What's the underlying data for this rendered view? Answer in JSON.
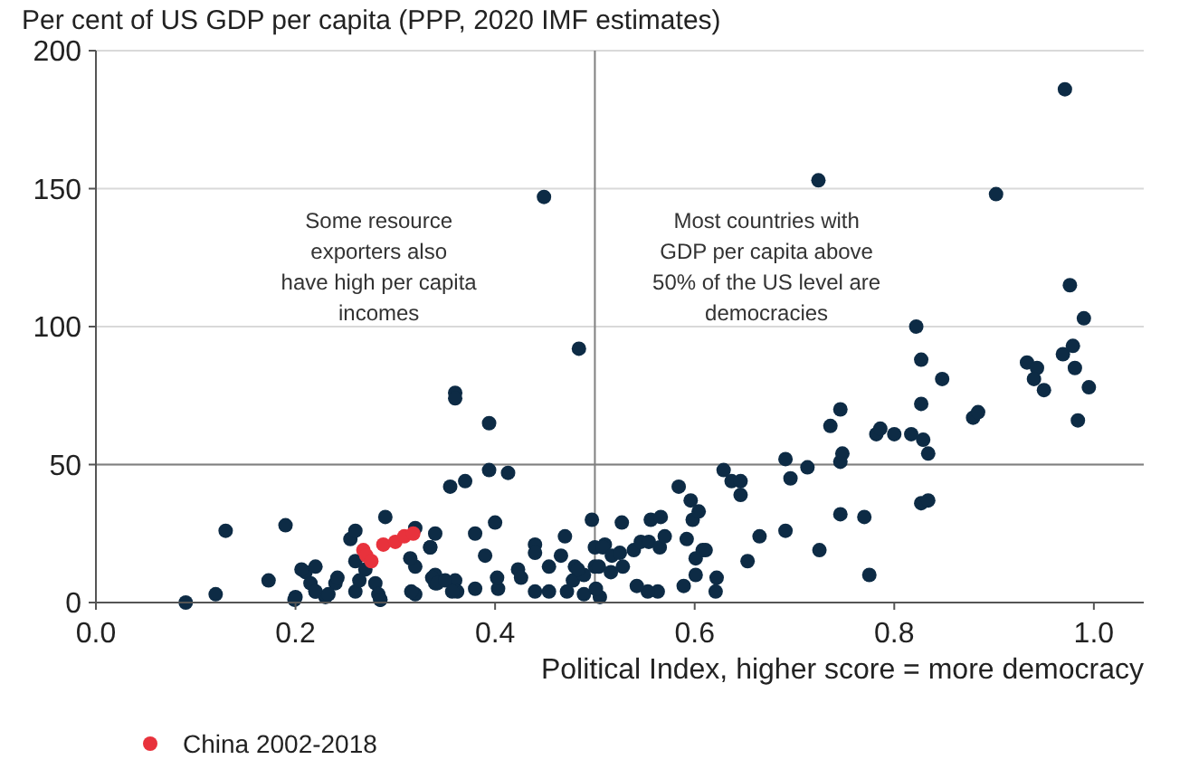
{
  "chart_data": {
    "type": "scatter",
    "title": "Per cent of US GDP per capita (PPP, 2020 IMF estimates)",
    "xlabel": "Political Index, higher score = more democracy",
    "xlim": [
      0,
      1.05
    ],
    "ylim": [
      0,
      200
    ],
    "xticks": [
      {
        "value": 0,
        "label": "0.0"
      },
      0.2,
      0.4,
      0.6,
      0.8,
      {
        "value": 1,
        "label": "1.0"
      }
    ],
    "yticks": [
      0,
      50,
      100,
      150,
      200
    ],
    "grid": "y",
    "legend": "bottom left",
    "marker": "circle",
    "ref_lines": [
      {
        "axis": "x",
        "value": 0.5,
        "color": "#808080"
      },
      {
        "axis": "y",
        "value": 50,
        "color": "#808080"
      }
    ],
    "annotations": [
      "Some resource\nexporters also\nhave high per capita\nincomes",
      "Most countries with\nGDP per capita above\n50% of the US level are\ndemocracies"
    ],
    "series": [
      {
        "color": "#0d2b45",
        "x": [
          0.09,
          0.12,
          0.13,
          0.19,
          0.2,
          0.21,
          0.22,
          0.22,
          0.23,
          0.24,
          0.26,
          0.255,
          0.26,
          0.26,
          0.27,
          0.28,
          0.285,
          0.29,
          0.32,
          0.32,
          0.32,
          0.335,
          0.34,
          0.34,
          0.34,
          0.36,
          0.355,
          0.37,
          0.36,
          0.36,
          0.394,
          0.413,
          0.394,
          0.449,
          0.484,
          0.38,
          0.4,
          0.335,
          0.315,
          0.39,
          0.44,
          0.44,
          0.47,
          0.497,
          0.466,
          0.454,
          0.48,
          0.5,
          0.423,
          0.173,
          0.206,
          0.242,
          0.264,
          0.283,
          0.285,
          0.215,
          0.22,
          0.233,
          0.199,
          0.316,
          0.337,
          0.342,
          0.35,
          0.362,
          0.357,
          0.38,
          0.403,
          0.402,
          0.426,
          0.44,
          0.454,
          0.472,
          0.478,
          0.489,
          0.505,
          0.51,
          0.5,
          0.527,
          0.508,
          0.517,
          0.525,
          0.504,
          0.528,
          0.539,
          0.546,
          0.554,
          0.556,
          0.566,
          0.565,
          0.57,
          0.584,
          0.596,
          0.598,
          0.604,
          0.592,
          0.601,
          0.601,
          0.608,
          0.611,
          0.622,
          0.621,
          0.589,
          0.563,
          0.553,
          0.542,
          0.489,
          0.501,
          0.516,
          0.483,
          0.629,
          0.637,
          0.646,
          0.646,
          0.653,
          0.665,
          0.691,
          0.696,
          0.713,
          0.691,
          0.725,
          0.746,
          0.746,
          0.748,
          0.77,
          0.775,
          0.827,
          0.834,
          0.834,
          0.971,
          0.724,
          0.902,
          0.976,
          0.99,
          0.822,
          0.827,
          0.848,
          0.827,
          0.879,
          0.884,
          0.933,
          0.943,
          0.94,
          0.95,
          0.969,
          0.979,
          0.981,
          0.995,
          0.984,
          0.736,
          0.746,
          0.782,
          0.786,
          0.8,
          0.817,
          0.829
        ],
        "values": [
          0,
          3,
          26,
          28,
          2,
          11,
          13,
          4,
          2,
          7,
          15,
          23,
          26,
          4,
          12,
          7,
          1,
          31,
          13,
          27,
          3,
          20,
          25,
          10,
          7,
          8,
          42,
          44,
          76,
          74,
          65,
          47,
          48,
          147,
          92,
          25,
          29,
          20,
          16,
          17,
          21,
          18,
          24,
          30,
          17,
          13,
          13,
          13,
          12,
          8,
          12,
          9,
          8,
          3,
          1,
          7,
          4,
          3,
          1,
          4,
          9,
          7,
          8,
          4,
          4,
          5,
          5,
          9,
          9,
          4,
          4,
          4,
          8,
          3,
          2,
          21,
          20,
          29,
          20,
          17,
          18,
          13,
          13,
          19,
          22,
          22,
          30,
          31,
          20,
          24,
          42,
          37,
          30,
          33,
          23,
          16,
          10,
          19,
          19,
          9,
          4,
          6,
          4,
          4,
          6,
          10,
          5,
          11,
          12,
          48,
          44,
          44,
          39,
          15,
          24,
          52,
          45,
          49,
          26,
          19,
          32,
          51,
          54,
          31,
          10,
          36,
          37,
          54,
          186,
          153,
          148,
          115,
          103,
          100,
          88,
          81,
          72,
          67,
          69,
          87,
          85,
          81,
          77,
          90,
          93,
          85,
          78,
          66,
          64,
          70,
          61,
          63,
          61,
          61,
          59
        ]
      },
      {
        "name": "China 2002-2018",
        "color": "#e8323c",
        "x": [
          0.268,
          0.271,
          0.276,
          0.288,
          0.3,
          0.309,
          0.318
        ],
        "values": [
          19,
          17,
          15,
          21,
          22,
          24,
          25
        ]
      }
    ]
  }
}
